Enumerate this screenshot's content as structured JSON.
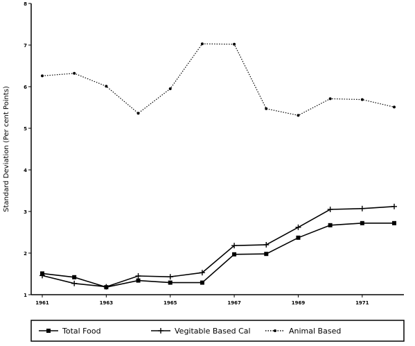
{
  "chart_data": {
    "type": "line",
    "title": "",
    "xlabel": "",
    "ylabel": "Standard Deviation (Per cent Points)",
    "x": [
      1961,
      1962,
      1963,
      1964,
      1965,
      1966,
      1967,
      1968,
      1969,
      1970,
      1971,
      1972
    ],
    "xtick_labels": [
      "1961",
      "1963",
      "1965",
      "1967",
      "1969",
      "1971"
    ],
    "xtick_values": [
      1961,
      1963,
      1965,
      1967,
      1969,
      1971
    ],
    "yticks": [
      1,
      2,
      3,
      4,
      5,
      6,
      7,
      8
    ],
    "ylim": [
      1,
      8
    ],
    "xlim": [
      1961,
      1972
    ],
    "grid": false,
    "legend_position": "bottom",
    "series": [
      {
        "name": "Total Food",
        "marker": "square",
        "dash": "solid",
        "values": [
          1.51,
          1.42,
          1.18,
          1.34,
          1.29,
          1.29,
          1.97,
          1.98,
          2.37,
          2.67,
          2.72,
          2.72
        ]
      },
      {
        "name": "Vegitable Based Cal",
        "marker": "plus",
        "dash": "solid",
        "values": [
          1.46,
          1.27,
          1.19,
          1.45,
          1.43,
          1.53,
          2.18,
          2.2,
          2.62,
          3.05,
          3.07,
          3.12
        ]
      },
      {
        "name": "Animal Based",
        "marker": "dot",
        "dash": "dotted",
        "values": [
          6.26,
          6.32,
          6.01,
          5.36,
          5.95,
          7.03,
          7.02,
          5.47,
          5.31,
          5.71,
          5.69,
          5.51
        ]
      }
    ]
  }
}
